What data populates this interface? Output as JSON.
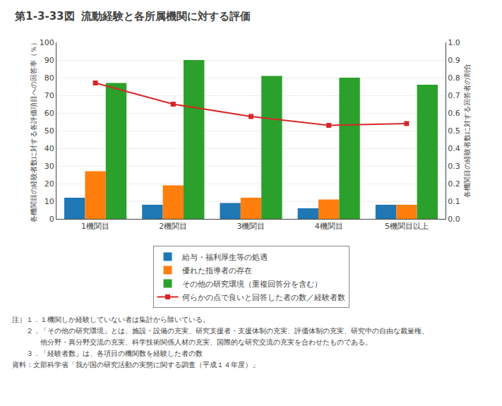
{
  "chart_data": {
    "type": "bar",
    "title": "第1-3-33図",
    "subtitle": "流動経験と各所属機関に対する評価",
    "categories": [
      "1機関目",
      "2機関目",
      "3機関目",
      "4機関目",
      "5機関目以上"
    ],
    "series": [
      {
        "name": "給与・福利厚生等の処遇",
        "type": "bar",
        "values": [
          12,
          8,
          9,
          6,
          8
        ]
      },
      {
        "name": "優れた指導者の存在",
        "type": "bar",
        "values": [
          27,
          19,
          12,
          11,
          8
        ]
      },
      {
        "name": "その他の研究環境（重複回答分を含む）",
        "type": "bar",
        "values": [
          77,
          90,
          81,
          80,
          76
        ]
      },
      {
        "name": "何らかの点で良いと回答した者の数／経験者数",
        "type": "line",
        "axis": "y2",
        "marker": "square",
        "line_style": "solid",
        "values": [
          0.77,
          0.65,
          0.58,
          0.53,
          0.54
        ]
      }
    ],
    "ylabel": "各機関目の経験者数に対する各評価項目への回答率（％）",
    "y2label": "各機関目の経験者数に対する回答者の割合",
    "ylim": [
      0,
      100
    ],
    "yticks": [
      0,
      10,
      20,
      30,
      40,
      50,
      60,
      70,
      80,
      90,
      100
    ],
    "y2lim": [
      0.0,
      1.0
    ],
    "y2ticks": [
      {
        "value": 0.0,
        "label": "0.0"
      },
      0.1,
      0.2,
      0.3,
      0.4,
      0.5,
      0.6,
      0.7,
      0.8,
      0.9,
      {
        "value": 1.0,
        "label": "1.0"
      }
    ],
    "grid": true,
    "legend": "bottom",
    "annotations": [
      "注）１．１機関しか経験していない者は集計から除いている。",
      "　　２．「その他の研究環境」とは、施設・設備の充実、研究支援者・支援体制の充実、評価体制の充実、研究中の自由な裁量権、",
      "　　　　他分野・異分野交流の充実、科学技術関係人材の充実、国際的な研究交流の充実を合わせたものである。",
      "　　３．「経験者数」は、各項目の機関数を経験した者の数",
      "資料：文部科学省「我が国の研究活動の実態に関する調査（平成１４年度）」"
    ]
  }
}
